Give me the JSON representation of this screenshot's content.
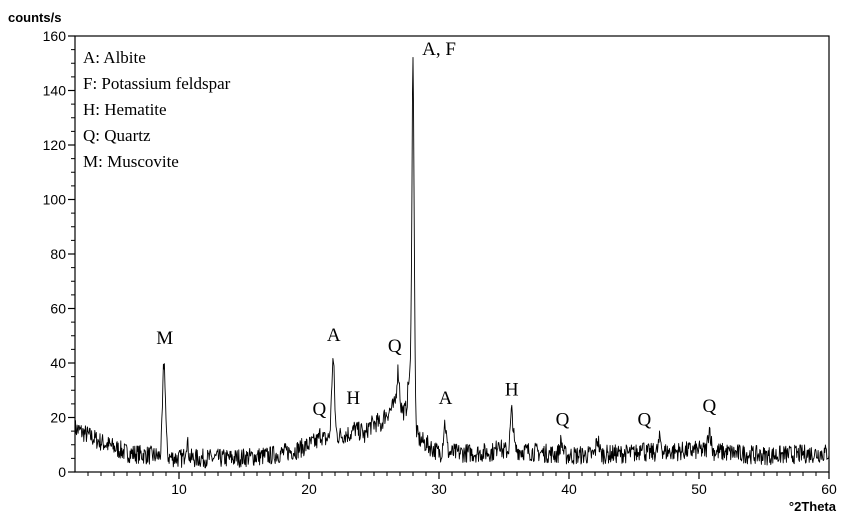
{
  "chart_data": {
    "type": "line",
    "xlabel": "°2Theta",
    "ylabel": "counts/s",
    "xlim": [
      2,
      60
    ],
    "ylim": [
      0,
      160
    ],
    "x_ticks": [
      10,
      20,
      30,
      40,
      50,
      60
    ],
    "y_ticks": [
      0,
      20,
      40,
      60,
      80,
      100,
      120,
      140,
      160
    ],
    "grid": false,
    "legend_placement": "top-left",
    "legend": [
      "A: Albite",
      "F: Potassium feldspar",
      "H: Hematite",
      "Q: Quartz",
      "M: Muscovite"
    ],
    "peak_labels": [
      {
        "label": "M",
        "x": 8.9,
        "y": 47
      },
      {
        "label": "Q",
        "x": 20.8,
        "y": 21
      },
      {
        "label": "A",
        "x": 21.9,
        "y": 48
      },
      {
        "label": "H",
        "x": 23.4,
        "y": 25
      },
      {
        "label": "Q",
        "x": 26.6,
        "y": 44
      },
      {
        "label": "A, F",
        "x": 30.0,
        "y": 153
      },
      {
        "label": "A",
        "x": 30.5,
        "y": 25
      },
      {
        "label": "H",
        "x": 35.6,
        "y": 28
      },
      {
        "label": "Q",
        "x": 39.5,
        "y": 17
      },
      {
        "label": "Q",
        "x": 45.8,
        "y": 17
      },
      {
        "label": "Q",
        "x": 50.8,
        "y": 22
      }
    ],
    "peaks": [
      {
        "x": 8.85,
        "y": 40
      },
      {
        "x": 10.6,
        "y": 11
      },
      {
        "x": 20.9,
        "y": 14
      },
      {
        "x": 21.85,
        "y": 41
      },
      {
        "x": 23.55,
        "y": 16
      },
      {
        "x": 24.3,
        "y": 13
      },
      {
        "x": 25.5,
        "y": 17
      },
      {
        "x": 26.85,
        "y": 37
      },
      {
        "x": 27.7,
        "y": 34
      },
      {
        "x": 28.0,
        "y": 150
      },
      {
        "x": 30.45,
        "y": 18
      },
      {
        "x": 34.6,
        "y": 12
      },
      {
        "x": 35.6,
        "y": 22
      },
      {
        "x": 39.4,
        "y": 11
      },
      {
        "x": 42.2,
        "y": 12
      },
      {
        "x": 45.6,
        "y": 11
      },
      {
        "x": 47.0,
        "y": 12
      },
      {
        "x": 50.8,
        "y": 16
      }
    ],
    "baseline": [
      [
        2,
        16
      ],
      [
        4,
        11
      ],
      [
        6,
        7
      ],
      [
        8,
        6
      ],
      [
        10,
        5
      ],
      [
        14,
        5
      ],
      [
        17,
        6
      ],
      [
        19,
        8
      ],
      [
        20.5,
        11
      ],
      [
        22,
        13
      ],
      [
        24,
        15
      ],
      [
        25.5,
        19
      ],
      [
        26.5,
        24
      ],
      [
        27.5,
        22
      ],
      [
        28.5,
        12
      ],
      [
        30,
        7
      ],
      [
        33,
        7
      ],
      [
        36,
        8
      ],
      [
        40,
        6
      ],
      [
        46,
        7
      ],
      [
        50,
        8
      ],
      [
        55,
        6
      ],
      [
        60,
        7
      ]
    ]
  }
}
